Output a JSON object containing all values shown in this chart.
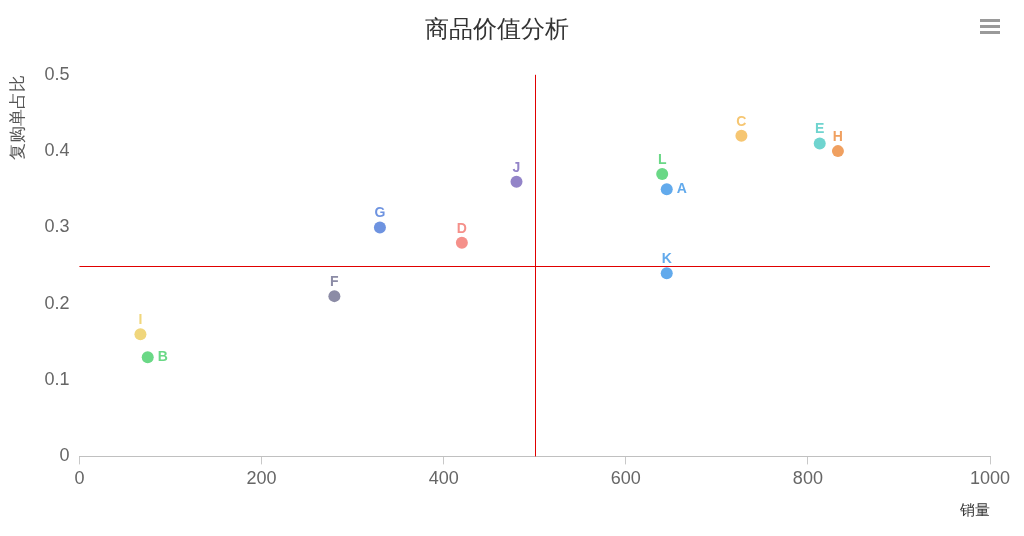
{
  "chart_data": {
    "type": "scatter",
    "title": "商品价值分析",
    "xlabel": "销量",
    "ylabel": "复购单占比",
    "xlim": [
      0,
      1000
    ],
    "xticks": [
      0,
      200,
      400,
      600,
      800,
      1000
    ],
    "ylim": [
      0,
      0.5
    ],
    "yticks": [
      0,
      0.1,
      0.2,
      0.3,
      0.4,
      0.5
    ],
    "grid": false,
    "legend": false,
    "marker": "circle",
    "series": [
      {
        "name": "A",
        "color": "#62aaec",
        "x": [
          645
        ],
        "values": [
          0.35
        ]
      },
      {
        "name": "B",
        "color": "#6ad886",
        "x": [
          75
        ],
        "values": [
          0.13
        ]
      },
      {
        "name": "C",
        "color": "#f6c672",
        "x": [
          727
        ],
        "values": [
          0.42
        ]
      },
      {
        "name": "D",
        "color": "#f5908a",
        "x": [
          420
        ],
        "values": [
          0.28
        ]
      },
      {
        "name": "E",
        "color": "#6fd4cf",
        "x": [
          813
        ],
        "values": [
          0.41
        ]
      },
      {
        "name": "F",
        "color": "#8c8ca6",
        "x": [
          280
        ],
        "values": [
          0.21
        ]
      },
      {
        "name": "G",
        "color": "#6e93e0",
        "x": [
          330
        ],
        "values": [
          0.3
        ]
      },
      {
        "name": "H",
        "color": "#f0a060",
        "x": [
          833
        ],
        "values": [
          0.4
        ]
      },
      {
        "name": "I",
        "color": "#f0d67c",
        "x": [
          67
        ],
        "values": [
          0.16
        ]
      },
      {
        "name": "J",
        "color": "#9384c8",
        "x": [
          480
        ],
        "values": [
          0.36
        ]
      },
      {
        "name": "K",
        "color": "#62aaec",
        "x": [
          645
        ],
        "values": [
          0.24
        ]
      },
      {
        "name": "L",
        "color": "#6ad886",
        "x": [
          640
        ],
        "values": [
          0.37
        ]
      }
    ],
    "ref_lines": [
      {
        "axis": "x",
        "value": 500,
        "color": "#e00000"
      },
      {
        "axis": "y",
        "value": 0.25,
        "color": "#e00000"
      }
    ]
  }
}
